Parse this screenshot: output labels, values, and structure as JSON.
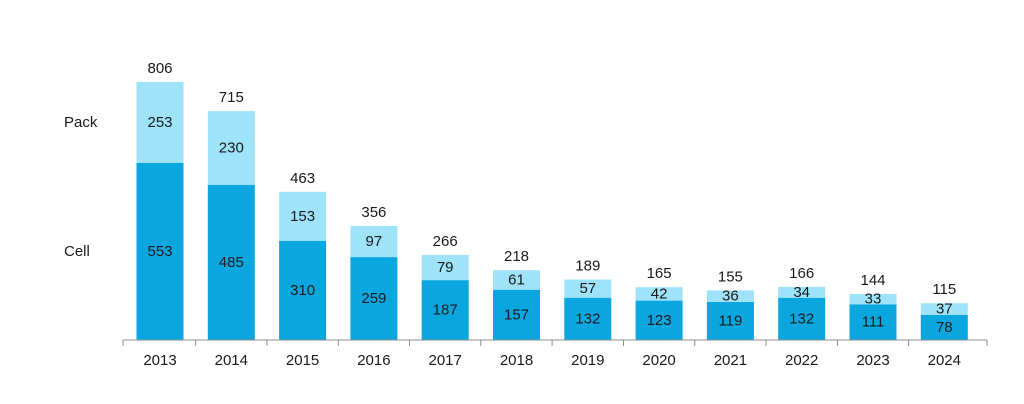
{
  "chart_data": {
    "type": "bar",
    "stacked": true,
    "categories": [
      "2013",
      "2014",
      "2015",
      "2016",
      "2017",
      "2018",
      "2019",
      "2020",
      "2021",
      "2022",
      "2023",
      "2024"
    ],
    "series": [
      {
        "name": "Cell",
        "values": [
          553,
          485,
          310,
          259,
          187,
          157,
          132,
          123,
          119,
          132,
          111,
          78
        ],
        "color": "#0aa6df"
      },
      {
        "name": "Pack",
        "values": [
          253,
          230,
          153,
          97,
          79,
          61,
          57,
          42,
          36,
          34,
          33,
          37
        ],
        "color": "#9ee3f9"
      }
    ],
    "totals": [
      806,
      715,
      463,
      356,
      266,
      218,
      189,
      165,
      155,
      166,
      144,
      115
    ],
    "title": "",
    "xlabel": "",
    "ylabel": "",
    "ylim": [
      0,
      806
    ],
    "grid": false,
    "legend_placement": "left"
  }
}
